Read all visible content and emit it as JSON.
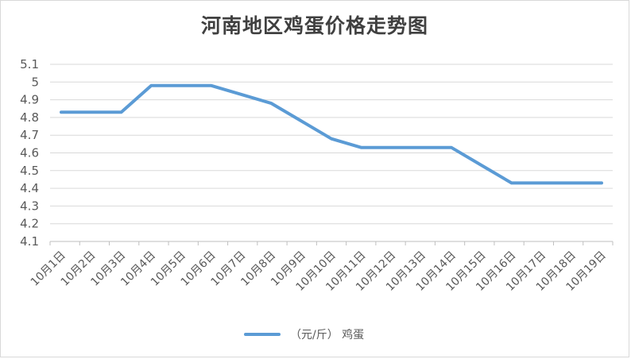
{
  "chart_data": {
    "type": "line",
    "title": "河南地区鸡蛋价格走势图",
    "xlabel": "",
    "ylabel": "",
    "categories": [
      "10月1日",
      "10月2日",
      "10月3日",
      "10月4日",
      "10月5日",
      "10月6日",
      "10月7日",
      "10月8日",
      "10月9日",
      "10月10日",
      "10月11日",
      "10月12日",
      "10月13日",
      "10月14日",
      "10月15日",
      "10月16日",
      "10月17日",
      "10月18日",
      "10月19日"
    ],
    "series": [
      {
        "name": "（元/斤） 鸡蛋",
        "values": [
          4.83,
          4.83,
          4.83,
          4.98,
          4.98,
          4.98,
          4.93,
          4.88,
          4.78,
          4.68,
          4.63,
          4.63,
          4.63,
          4.63,
          4.53,
          4.43,
          4.43,
          4.43,
          4.43
        ]
      }
    ],
    "ylim": [
      4.1,
      5.1
    ],
    "yticks": [
      "4.1",
      "4.2",
      "4.3",
      "4.4",
      "4.5",
      "4.6",
      "4.7",
      "4.8",
      "4.9",
      "5",
      "5.1"
    ],
    "grid": true,
    "legend": "bottom",
    "colors": {
      "line": "#5b9bd5",
      "grid": "#d9d9d9",
      "text": "#595959",
      "title": "#404040"
    }
  }
}
